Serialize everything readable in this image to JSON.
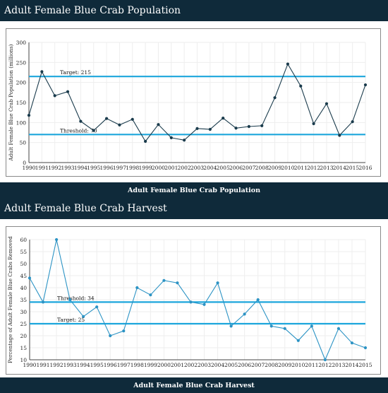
{
  "charts": {
    "population": {
      "header": "Adult Female Blue Crab Population",
      "footer": "Adult Female Blue Crab Population"
    },
    "harvest": {
      "header": "Adult Female Blue Crab Harvest",
      "footer": "Adult Female Blue Crab Harvest"
    }
  },
  "colors": {
    "band": "#0f2a3a",
    "population_line": "#1a3b4c",
    "harvest_line": "#2c93c4",
    "reference_line": "#1ca6dc",
    "grid": "#eeeeee"
  },
  "chart_data": [
    {
      "type": "line",
      "title": "Adult Female Blue Crab Population",
      "xlabel": "",
      "ylabel": "Adult Female Blue Crab Population (millions)",
      "categories": [
        "1990",
        "1991",
        "1992",
        "1993",
        "1994",
        "1995",
        "1996",
        "1997",
        "1998",
        "1999",
        "2000",
        "2001",
        "2002",
        "2003",
        "2004",
        "2005",
        "2006",
        "2007",
        "2008",
        "2009",
        "2010",
        "2011",
        "2012",
        "2013",
        "2014",
        "2015",
        "2016"
      ],
      "series": [
        {
          "values": [
            118,
            227,
            167,
            177,
            103,
            80,
            110,
            94,
            108,
            53,
            95,
            62,
            56,
            85,
            83,
            111,
            86,
            90,
            92,
            162,
            246,
            191,
            97,
            147,
            68,
            102,
            194
          ]
        }
      ],
      "ylim": [
        0,
        300
      ],
      "yticks": [
        "0",
        "50",
        "100",
        "150",
        "200",
        "250",
        "300"
      ],
      "reference_lines": [
        {
          "label": "Target: 215",
          "value": 215
        },
        {
          "label": "Threshold: 70",
          "value": 70
        }
      ],
      "grid": true
    },
    {
      "type": "line",
      "title": "Adult Female Blue Crab Harvest",
      "xlabel": "",
      "ylabel": "Percentage of Adult Female Blue Crabs Removed",
      "categories": [
        "1990",
        "1991",
        "1992",
        "1993",
        "1994",
        "1995",
        "1996",
        "1997",
        "1998",
        "1999",
        "2000",
        "2001",
        "2002",
        "2003",
        "2004",
        "2005",
        "2006",
        "2007",
        "2008",
        "2009",
        "2010",
        "2011",
        "2012",
        "2013",
        "2014",
        "2015"
      ],
      "series": [
        {
          "values": [
            44,
            34,
            60,
            35,
            28,
            32,
            20,
            22,
            40,
            37,
            43,
            42,
            34,
            33,
            42,
            24,
            29,
            35,
            24,
            23,
            18,
            24,
            10,
            23,
            17,
            15
          ]
        }
      ],
      "ylim": [
        10,
        60
      ],
      "yticks": [
        "10",
        "15",
        "20",
        "25",
        "30",
        "35",
        "40",
        "45",
        "50",
        "55",
        "60"
      ],
      "reference_lines": [
        {
          "label": "Threshold: 34",
          "value": 34
        },
        {
          "label": "Target: 25",
          "value": 25
        }
      ],
      "grid": true
    }
  ]
}
